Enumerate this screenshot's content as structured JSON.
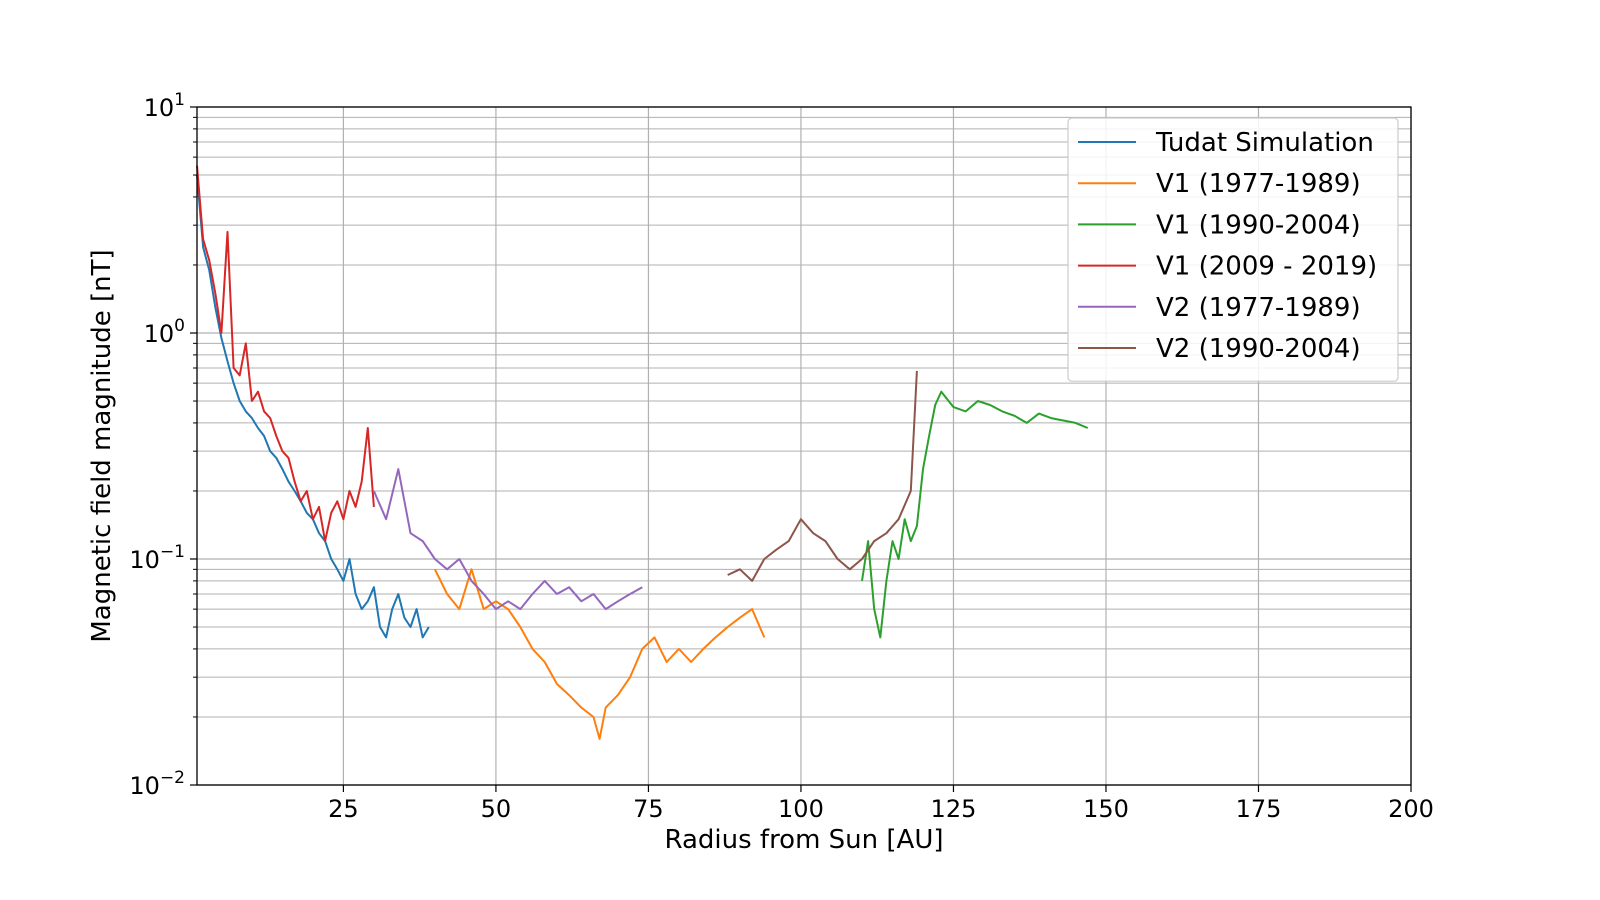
{
  "chart_data": {
    "type": "line",
    "xlabel": "Radius from Sun [AU]",
    "ylabel": "Magnetic field magnitude [nT]",
    "xlim": [
      1,
      200
    ],
    "ylim": [
      0.01,
      10
    ],
    "yscale": "log",
    "grid": true,
    "legend_position": "top-right",
    "x_ticks": [
      {
        "value": 25,
        "label": "25"
      },
      {
        "value": 50,
        "label": "50"
      },
      {
        "value": 75,
        "label": "75"
      },
      {
        "value": 100,
        "label": "100"
      },
      {
        "value": 125,
        "label": "125"
      },
      {
        "value": 150,
        "label": "150"
      },
      {
        "value": 175,
        "label": "175"
      },
      {
        "value": 200,
        "label": "200"
      }
    ],
    "y_ticks": [
      {
        "value": 0.01,
        "base": "10",
        "exp": "−2"
      },
      {
        "value": 0.1,
        "base": "10",
        "exp": "−1"
      },
      {
        "value": 1,
        "base": "10",
        "exp": "0"
      },
      {
        "value": 10,
        "base": "10",
        "exp": "1"
      }
    ],
    "series": [
      {
        "name": "Tudat Simulation",
        "color": "#1f77b4",
        "x": [
          1.0,
          2.0,
          3.0,
          4.0,
          5.0,
          6.0,
          7.0,
          8.0,
          9.0,
          10.0,
          11.0,
          12.0,
          13.0,
          14.0,
          15.0,
          16.0,
          17.0,
          18.0,
          19.0,
          20.0,
          21.0,
          22.0,
          23.0,
          24.0,
          25.0,
          26.0,
          27.0,
          28.0,
          29.0,
          30.0,
          31.0,
          32.0,
          33.0,
          34.0,
          35.0,
          36.0,
          37.0,
          38.0,
          39.0
        ],
        "y": [
          5.0,
          2.4,
          1.9,
          1.3,
          0.95,
          0.75,
          0.6,
          0.5,
          0.45,
          0.42,
          0.38,
          0.35,
          0.3,
          0.28,
          0.25,
          0.22,
          0.2,
          0.18,
          0.16,
          0.15,
          0.13,
          0.12,
          0.1,
          0.09,
          0.08,
          0.1,
          0.07,
          0.06,
          0.065,
          0.075,
          0.05,
          0.045,
          0.06,
          0.07,
          0.055,
          0.05,
          0.06,
          0.045,
          0.05
        ]
      },
      {
        "name": "V1 (1977-1989)",
        "color": "#ff7f0e",
        "x": [
          40,
          42,
          44,
          46,
          48,
          50,
          52,
          54,
          56,
          58,
          60,
          62,
          64,
          66,
          67,
          68,
          70,
          72,
          74,
          76,
          78,
          80,
          82,
          84,
          86,
          88,
          90,
          92,
          94
        ],
        "y": [
          0.09,
          0.07,
          0.06,
          0.09,
          0.06,
          0.065,
          0.06,
          0.05,
          0.04,
          0.035,
          0.028,
          0.025,
          0.022,
          0.02,
          0.016,
          0.022,
          0.025,
          0.03,
          0.04,
          0.045,
          0.035,
          0.04,
          0.035,
          0.04,
          0.045,
          0.05,
          0.055,
          0.06,
          0.045
        ]
      },
      {
        "name": "V1 (1990-2004)",
        "color": "#2ca02c",
        "x": [
          110,
          111,
          112,
          113,
          114,
          115,
          116,
          117,
          118,
          119,
          120,
          121,
          122,
          123,
          125,
          127,
          129,
          131,
          133,
          135,
          137,
          139,
          141,
          143,
          145,
          147
        ],
        "y": [
          0.08,
          0.12,
          0.06,
          0.045,
          0.08,
          0.12,
          0.1,
          0.15,
          0.12,
          0.14,
          0.25,
          0.35,
          0.48,
          0.55,
          0.47,
          0.45,
          0.5,
          0.48,
          0.45,
          0.43,
          0.4,
          0.44,
          0.42,
          0.41,
          0.4,
          0.38
        ]
      },
      {
        "name": "V1 (2009 - 2019)",
        "color": "#d62728",
        "x": [
          1,
          2,
          3,
          4,
          5,
          6,
          7,
          8,
          9,
          10,
          11,
          12,
          13,
          14,
          15,
          16,
          17,
          18,
          19,
          20,
          21,
          22,
          23,
          24,
          25,
          26,
          27,
          28,
          29,
          30
        ],
        "y": [
          5.5,
          2.6,
          2.1,
          1.5,
          1.0,
          2.8,
          0.7,
          0.65,
          0.9,
          0.5,
          0.55,
          0.45,
          0.42,
          0.35,
          0.3,
          0.28,
          0.22,
          0.18,
          0.2,
          0.15,
          0.17,
          0.12,
          0.16,
          0.18,
          0.15,
          0.2,
          0.17,
          0.22,
          0.38,
          0.17
        ]
      },
      {
        "name": "V2 (1977-1989)",
        "color": "#9467bd",
        "x": [
          30,
          32,
          34,
          36,
          38,
          40,
          42,
          44,
          46,
          48,
          50,
          52,
          54,
          56,
          58,
          60,
          62,
          64,
          66,
          68,
          70,
          72,
          74
        ],
        "y": [
          0.2,
          0.15,
          0.25,
          0.13,
          0.12,
          0.1,
          0.09,
          0.1,
          0.08,
          0.07,
          0.06,
          0.065,
          0.06,
          0.07,
          0.08,
          0.07,
          0.075,
          0.065,
          0.07,
          0.06,
          0.065,
          0.07,
          0.075
        ]
      },
      {
        "name": "V2 (1990-2004)",
        "color": "#8c564b",
        "x": [
          88,
          90,
          92,
          94,
          96,
          98,
          100,
          102,
          104,
          106,
          108,
          110,
          112,
          114,
          116,
          118,
          119
        ],
        "y": [
          0.085,
          0.09,
          0.08,
          0.1,
          0.11,
          0.12,
          0.15,
          0.13,
          0.12,
          0.1,
          0.09,
          0.1,
          0.12,
          0.13,
          0.15,
          0.2,
          0.68
        ]
      }
    ]
  }
}
